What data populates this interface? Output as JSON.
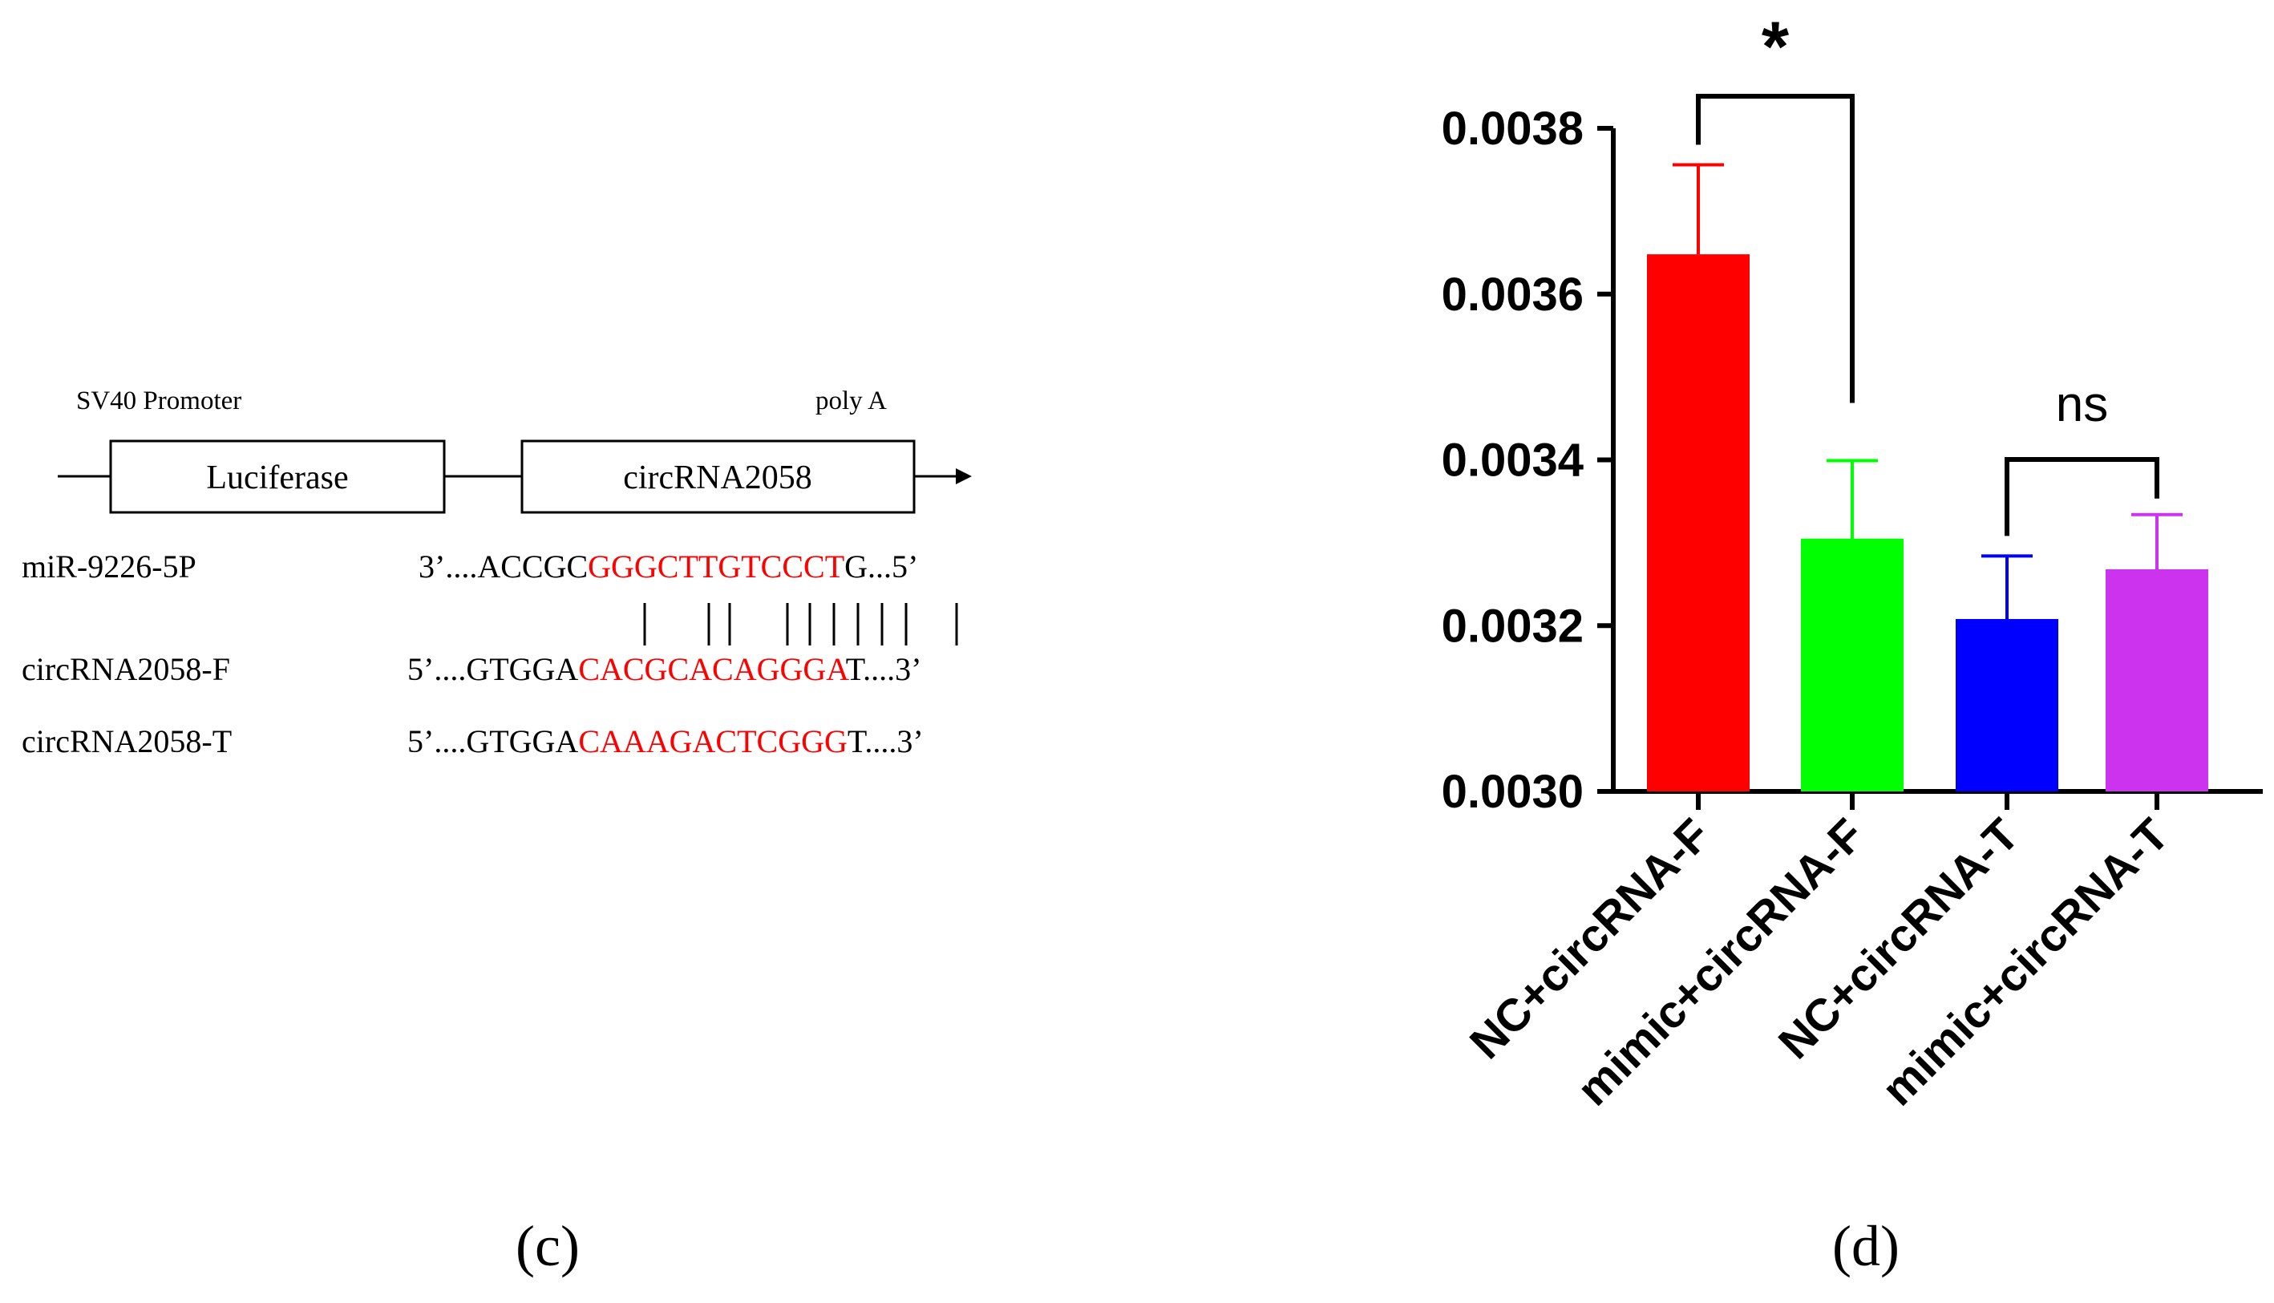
{
  "panel_c": {
    "promoter_label": "SV40 Promoter",
    "polya_label": "poly A",
    "box1_label": "Luciferase",
    "box2_label": "circRNA2058",
    "rows": [
      {
        "name": "miR-9226-5P",
        "prefix": "3’....ACCGC",
        "highlight": "GGGCTTGTCCCT",
        "suffix": "G...5’"
      },
      {
        "name": "circRNA2058-F",
        "prefix": "5’....GTGGA",
        "highlight": "CACGCACAGGGA",
        "suffix": "T....3’"
      },
      {
        "name": "circRNA2058-T",
        "prefix": "5’....GTGGA",
        "highlight": "CAAAGACTCGGG",
        "suffix": "T....3’"
      }
    ],
    "pairing_bars": "|    ||    |||||||",
    "caption": "(c)"
  },
  "chart_data": {
    "type": "bar",
    "categories": [
      "NC+circRNA-F",
      "mimic+circRNA-F",
      "NC+circRNA-T",
      "mimic+circRNA-T"
    ],
    "values": [
      0.003648,
      0.003305,
      0.003208,
      0.003268
    ],
    "errors": [
      0.000108,
      9.4e-05,
      7.6e-05,
      6.6e-05
    ],
    "colors": [
      "#ff0000",
      "#00ff00",
      "#0000ff",
      "#cc33ee"
    ],
    "ylim": [
      0.003,
      0.0038
    ],
    "yticks": [
      "0.0030",
      "0.0032",
      "0.0034",
      "0.0036",
      "0.0038"
    ],
    "xlabel": "",
    "ylabel": "",
    "title": "",
    "annotations": [
      {
        "label": "*",
        "from": 0,
        "to": 1
      },
      {
        "label": "ns",
        "from": 2,
        "to": 3
      }
    ],
    "caption": "(d)"
  }
}
